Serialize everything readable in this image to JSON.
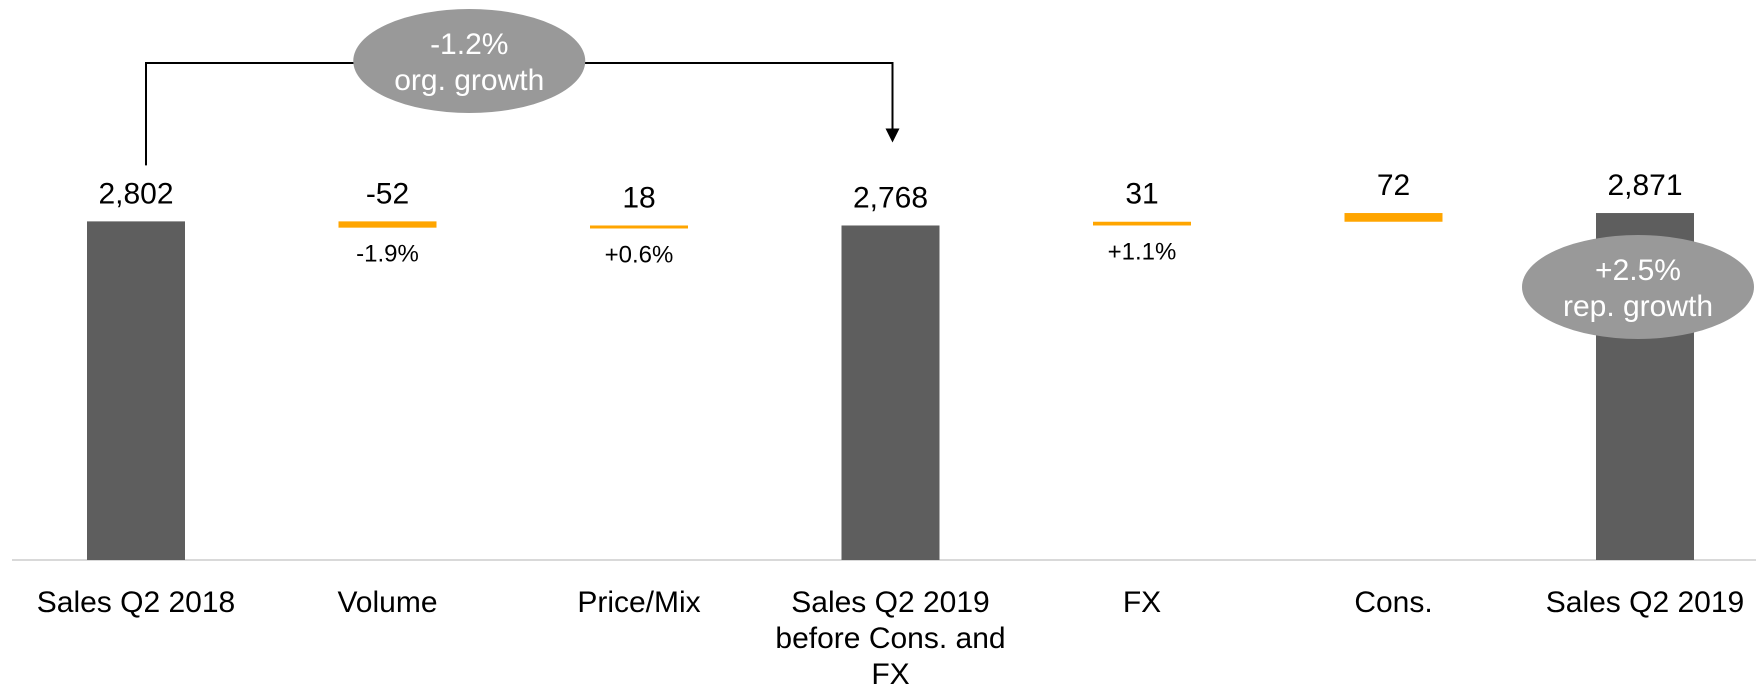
{
  "colors": {
    "total_bar": "#5e5e5e",
    "delta_bar": "#ffa500",
    "bubble": "#999999",
    "axis": "#d9d9d9",
    "connector": "#000000"
  },
  "chart_data": {
    "type": "bar",
    "subtype": "waterfall",
    "title": "",
    "xlabel": "",
    "ylabel": "",
    "ylim": [
      0,
      2871
    ],
    "grid": false,
    "categories": [
      "Sales Q2 2018",
      "Volume",
      "Price/Mix",
      "Sales Q2 2019 before Cons. and FX",
      "FX",
      "Cons.",
      "Sales Q2 2019"
    ],
    "category_lines": [
      [
        "Sales Q2 2018"
      ],
      [
        "Volume"
      ],
      [
        "Price/Mix"
      ],
      [
        "Sales Q2 2019",
        "before Cons. and",
        "FX"
      ],
      [
        "FX"
      ],
      [
        "Cons."
      ],
      [
        "Sales Q2 2019"
      ]
    ],
    "bar_kinds": [
      "total",
      "delta",
      "delta",
      "total",
      "delta",
      "delta",
      "total"
    ],
    "values": [
      2802,
      -52,
      18,
      2768,
      31,
      72,
      2871
    ],
    "value_labels": [
      "2,802",
      "-52",
      "18",
      "2,768",
      "31",
      "72",
      "2,871"
    ],
    "pct_labels": [
      "",
      "-1.9%",
      "+0.6%",
      "",
      "+1.1%",
      "",
      ""
    ],
    "annotations": [
      {
        "text_lines": [
          "-1.2%",
          "org. growth"
        ],
        "from_category": 0,
        "to_category": 3
      },
      {
        "text_lines": [
          "+2.5%",
          "rep. growth"
        ],
        "on_category": 6
      }
    ]
  }
}
